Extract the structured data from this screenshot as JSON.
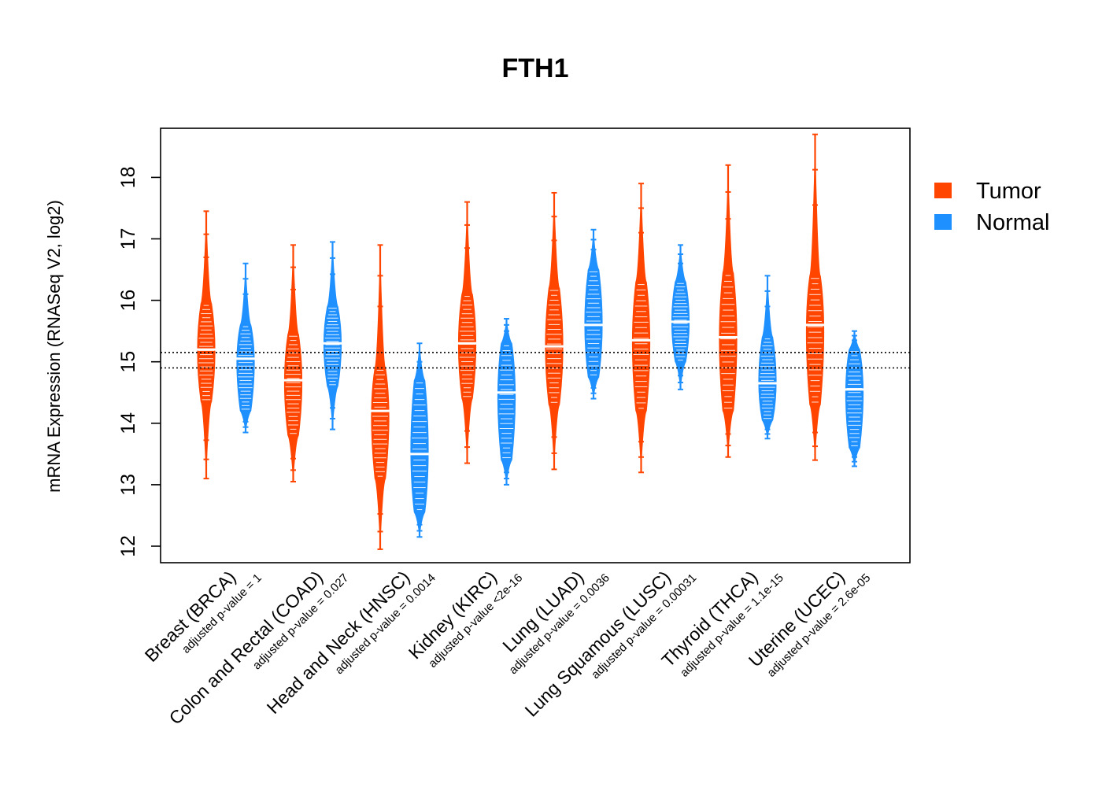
{
  "chart_data": {
    "type": "violin",
    "title": "FTH1",
    "ylabel": "mRNA Expression (RNASeq V2, log2)",
    "xlabel": "",
    "ylim": [
      11.75,
      18.8
    ],
    "yticks": [
      "12",
      "13",
      "14",
      "15",
      "16",
      "17",
      "18"
    ],
    "reference_lines": [
      14.9,
      15.15
    ],
    "legend": {
      "position": "right",
      "items": [
        {
          "label": "Tumor",
          "color": "#FF4500"
        },
        {
          "label": "Normal",
          "color": "#1E90FF"
        }
      ]
    },
    "groups": [
      {
        "name": "Breast (BRCA)",
        "pvalue_label": "adjusted p-value = 1",
        "tumor": {
          "median": 15.2,
          "min": 13.1,
          "max": 17.45,
          "body_low": 14.35,
          "body_high": 15.95
        },
        "normal": {
          "median": 15.05,
          "min": 13.85,
          "max": 16.6,
          "body_low": 14.2,
          "body_high": 15.6
        }
      },
      {
        "name": "Colon and Rectal (COAD)",
        "pvalue_label": "adjusted p-value = 0.027",
        "tumor": {
          "median": 14.7,
          "min": 13.05,
          "max": 16.9,
          "body_low": 13.8,
          "body_high": 15.45
        },
        "normal": {
          "median": 15.3,
          "min": 13.9,
          "max": 16.95,
          "body_low": 14.6,
          "body_high": 15.9
        }
      },
      {
        "name": "Head and Neck (HNSC)",
        "pvalue_label": "adjusted p-value = 0.0014",
        "tumor": {
          "median": 14.2,
          "min": 11.95,
          "max": 16.9,
          "body_low": 13.1,
          "body_high": 14.9
        },
        "normal": {
          "median": 13.5,
          "min": 12.15,
          "max": 15.3,
          "body_low": 12.55,
          "body_high": 14.7
        }
      },
      {
        "name": "Kidney (KIRC)",
        "pvalue_label": "adjusted p-value <2e-16",
        "tumor": {
          "median": 15.3,
          "min": 13.35,
          "max": 17.6,
          "body_low": 14.4,
          "body_high": 16.1
        },
        "normal": {
          "median": 14.5,
          "min": 13.0,
          "max": 15.7,
          "body_low": 13.4,
          "body_high": 15.3
        }
      },
      {
        "name": "Lung (LUAD)",
        "pvalue_label": "adjusted p-value = 0.0036",
        "tumor": {
          "median": 15.25,
          "min": 13.25,
          "max": 17.75,
          "body_low": 14.3,
          "body_high": 16.2
        },
        "normal": {
          "median": 15.6,
          "min": 14.4,
          "max": 17.15,
          "body_low": 14.75,
          "body_high": 16.5
        }
      },
      {
        "name": "Lung Squamous (LUSC)",
        "pvalue_label": "adjusted p-value = 0.00031",
        "tumor": {
          "median": 15.35,
          "min": 13.2,
          "max": 17.9,
          "body_low": 14.2,
          "body_high": 16.3
        },
        "normal": {
          "median": 15.65,
          "min": 14.55,
          "max": 16.9,
          "body_low": 15.0,
          "body_high": 16.3
        }
      },
      {
        "name": "Thyroid (THCA)",
        "pvalue_label": "adjusted p-value = 1.1e-15",
        "tumor": {
          "median": 15.4,
          "min": 13.45,
          "max": 18.2,
          "body_low": 14.2,
          "body_high": 16.45
        },
        "normal": {
          "median": 14.65,
          "min": 13.75,
          "max": 16.4,
          "body_low": 14.05,
          "body_high": 15.4
        }
      },
      {
        "name": "Uterine (UCEC)",
        "pvalue_label": "adjusted p-value = 2.6e-05",
        "tumor": {
          "median": 15.6,
          "min": 13.4,
          "max": 18.7,
          "body_low": 14.3,
          "body_high": 16.4
        },
        "normal": {
          "median": 14.55,
          "min": 13.3,
          "max": 15.5,
          "body_low": 13.6,
          "body_high": 15.2
        }
      }
    ]
  }
}
